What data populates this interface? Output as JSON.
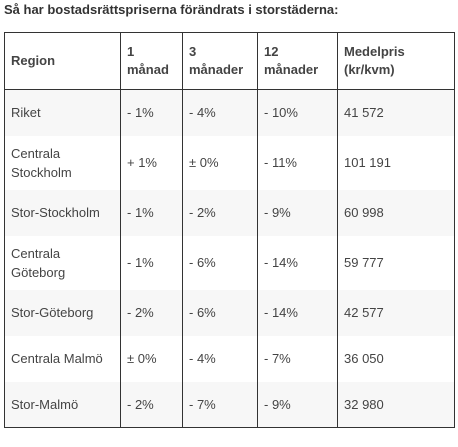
{
  "caption": "Så har bostadsrättspriserna förändrats i storstäderna:",
  "table": {
    "headers": [
      "Region",
      "1 månad",
      "3 månader",
      "12 månader",
      "Medelpris (kr/kvm)"
    ],
    "rows": [
      [
        "Riket",
        "- 1%",
        "- 4%",
        "- 10%",
        "41 572"
      ],
      [
        "Centrala Stockholm",
        "+ 1%",
        "± 0%",
        "- 11%",
        "101 191"
      ],
      [
        "Stor-Stockholm",
        "- 1%",
        "- 2%",
        "- 9%",
        "60 998"
      ],
      [
        "Centrala Göteborg",
        "- 1%",
        "- 6%",
        "- 14%",
        "59 777"
      ],
      [
        "Stor-Göteborg",
        "- 2%",
        "- 6%",
        "- 14%",
        "42 577"
      ],
      [
        "Centrala Malmö",
        "± 0%",
        "- 4%",
        "- 7%",
        "36 050"
      ],
      [
        "Stor-Malmö",
        "- 2%",
        "- 7%",
        "- 9%",
        "32 980"
      ]
    ]
  }
}
